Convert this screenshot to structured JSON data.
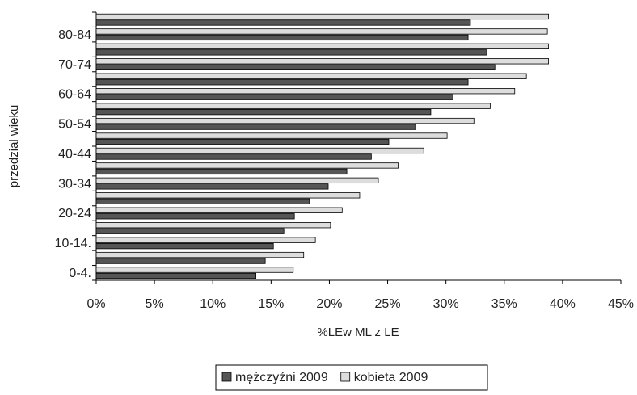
{
  "chart_data": {
    "type": "bar",
    "orientation": "horizontal",
    "categories": [
      "0-4.",
      null,
      "10-14.",
      null,
      "20-24",
      null,
      "30-34",
      null,
      "40-44",
      null,
      "50-54",
      null,
      "60-64",
      null,
      "70-74",
      null,
      "80-84",
      null
    ],
    "series": [
      {
        "name": "mężczyźni 2009",
        "color": "#555555",
        "values": [
          13.7,
          14.5,
          15.2,
          16.1,
          17.0,
          18.3,
          19.9,
          21.5,
          23.6,
          25.1,
          27.4,
          28.7,
          30.6,
          31.9,
          34.2,
          33.5,
          31.9,
          32.1
        ]
      },
      {
        "name": "kobieta  2009",
        "color": "#dddddd",
        "values": [
          16.9,
          17.8,
          18.8,
          20.1,
          21.1,
          22.6,
          24.2,
          25.9,
          28.1,
          30.1,
          32.4,
          33.8,
          35.9,
          36.9,
          38.8,
          38.8,
          38.7,
          38.8
        ]
      }
    ],
    "xlabel": "%LEw ML z LE",
    "ylabel": "przedzial wieku",
    "xlim": [
      0,
      45
    ],
    "xticks": [
      {
        "value": 0,
        "label": "0%"
      },
      {
        "value": 5,
        "label": "5%"
      },
      {
        "value": 10,
        "label": "10%"
      },
      {
        "value": 15,
        "label": "15%"
      },
      {
        "value": 20,
        "label": "20%"
      },
      {
        "value": 25,
        "label": "25%"
      },
      {
        "value": 30,
        "label": "30%"
      },
      {
        "value": 35,
        "label": "35%"
      },
      {
        "value": 40,
        "label": "40%"
      },
      {
        "value": 45,
        "label": "45%"
      }
    ],
    "legend": "bottom"
  }
}
